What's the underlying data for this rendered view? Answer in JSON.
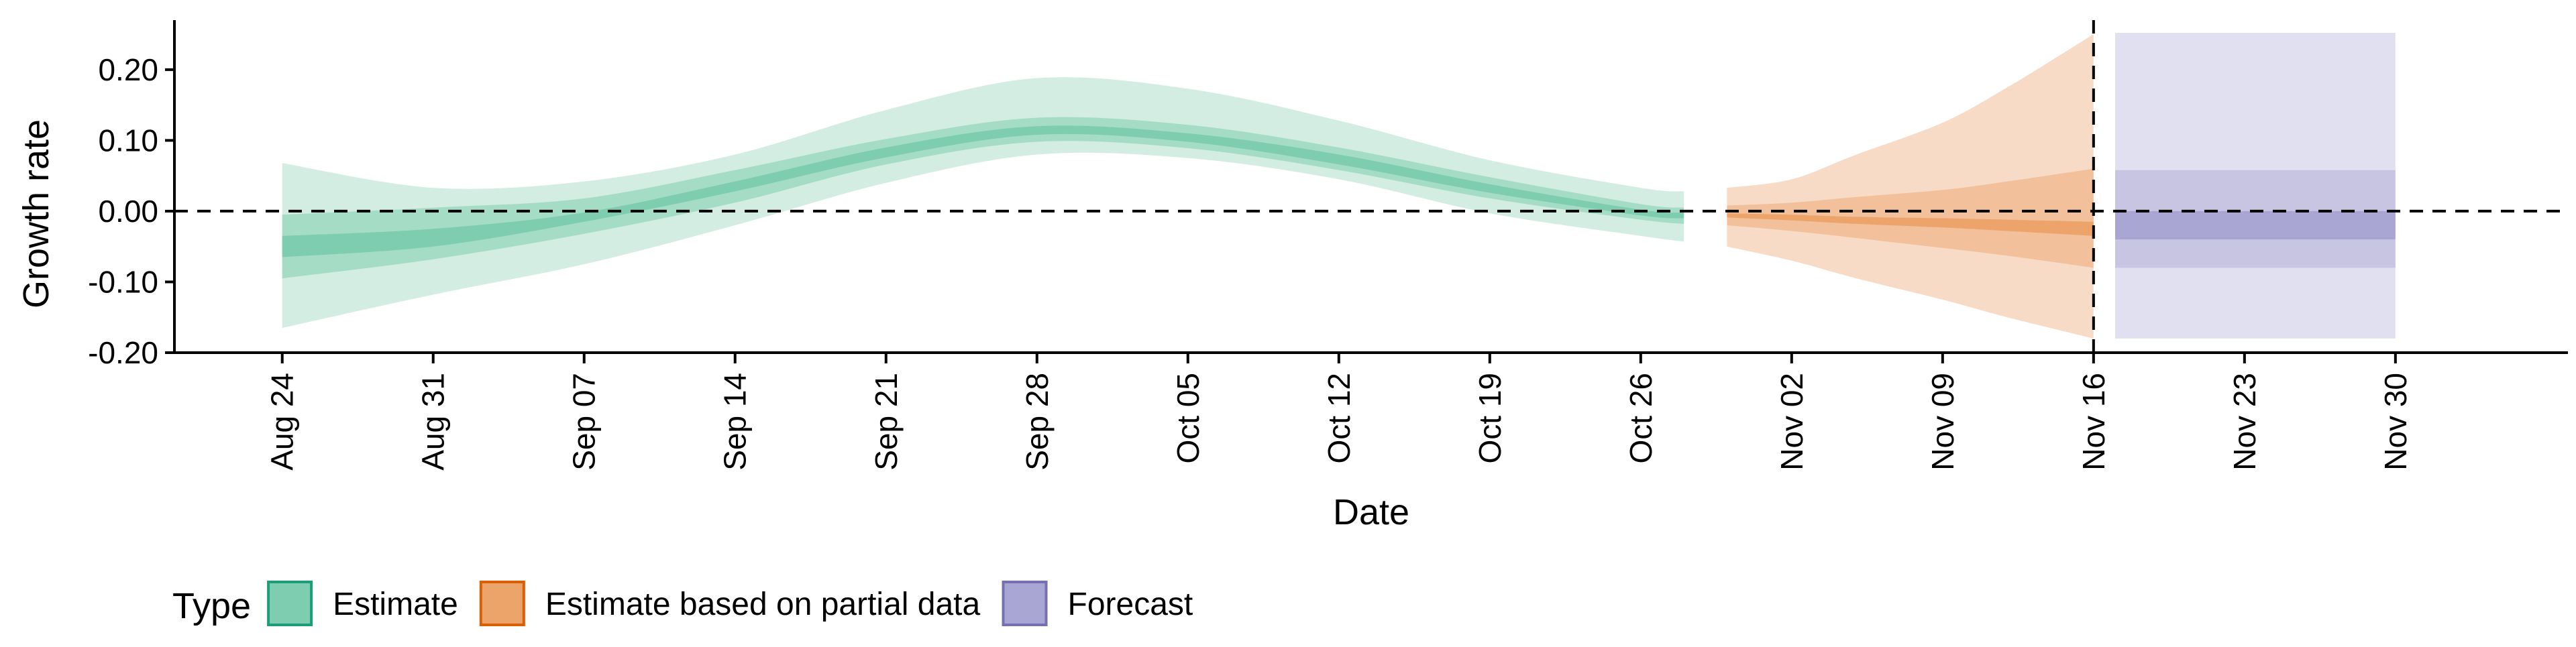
{
  "chart_data": {
    "type": "area",
    "title": "",
    "xlabel": "Date",
    "ylabel": "Growth rate",
    "ylim": [
      -0.2,
      0.27
    ],
    "yticks": [
      -0.2,
      -0.1,
      0.0,
      0.1,
      0.2
    ],
    "ytick_labels": [
      "-0.20",
      "-0.10",
      "0.00",
      "0.10",
      "0.20"
    ],
    "xlim": [
      "2020-08-19",
      "2020-12-08"
    ],
    "xticks": [
      "2020-08-24",
      "2020-08-31",
      "2020-09-07",
      "2020-09-14",
      "2020-09-21",
      "2020-09-28",
      "2020-10-05",
      "2020-10-12",
      "2020-10-19",
      "2020-10-26",
      "2020-11-02",
      "2020-11-09",
      "2020-11-16",
      "2020-11-23",
      "2020-11-30"
    ],
    "xtick_labels": [
      "Aug 24",
      "Aug 31",
      "Sep 07",
      "Sep 14",
      "Sep 21",
      "Sep 28",
      "Oct 05",
      "Oct 12",
      "Oct 19",
      "Oct 26",
      "Nov 02",
      "Nov 09",
      "Nov 16",
      "Nov 23",
      "Nov 30"
    ],
    "reference_lines": {
      "horizontal_y": 0.0,
      "vertical_x": "2020-11-16"
    },
    "grid": false,
    "legend": {
      "title": "Type",
      "position": "bottom-left",
      "entries": [
        {
          "label": "Estimate",
          "fill": "#7ecdb0",
          "stroke": "#1b9e77"
        },
        {
          "label": "Estimate based on partial data",
          "fill": "#eda46a",
          "stroke": "#d95f02"
        },
        {
          "label": "Forecast",
          "fill": "#aaa6d4",
          "stroke": "#7570b3"
        }
      ]
    },
    "series": [
      {
        "name": "Estimate",
        "colors": {
          "outer": "#d4ede3",
          "mid": "#a5dcc6",
          "inner": "#7ecdb0"
        },
        "x": [
          "2020-08-24",
          "2020-08-31",
          "2020-09-07",
          "2020-09-14",
          "2020-09-21",
          "2020-09-28",
          "2020-10-05",
          "2020-10-12",
          "2020-10-19",
          "2020-10-26",
          "2020-10-28"
        ],
        "outer_upper": [
          0.068,
          0.033,
          0.042,
          0.08,
          0.143,
          0.188,
          0.173,
          0.128,
          0.072,
          0.033,
          0.028
        ],
        "outer_lower": [
          -0.165,
          -0.118,
          -0.075,
          -0.02,
          0.04,
          0.08,
          0.075,
          0.045,
          -0.003,
          -0.035,
          -0.043
        ],
        "mid_upper": [
          -0.005,
          0.005,
          0.018,
          0.058,
          0.102,
          0.132,
          0.122,
          0.09,
          0.048,
          0.01,
          0.005
        ],
        "mid_lower": [
          -0.095,
          -0.068,
          -0.032,
          0.012,
          0.066,
          0.098,
          0.089,
          0.058,
          0.018,
          -0.012,
          -0.018
        ],
        "inner_upper": [
          -0.035,
          -0.025,
          -0.002,
          0.042,
          0.09,
          0.12,
          0.11,
          0.08,
          0.038,
          0.002,
          -0.002
        ],
        "inner_lower": [
          -0.065,
          -0.05,
          -0.015,
          0.028,
          0.076,
          0.108,
          0.098,
          0.066,
          0.026,
          -0.006,
          -0.01
        ]
      },
      {
        "name": "Estimate based on partial data",
        "colors": {
          "outer": "#f8dbc6",
          "mid": "#f2c09a",
          "inner": "#eda46a"
        },
        "x": [
          "2020-10-30",
          "2020-11-02",
          "2020-11-05",
          "2020-11-09",
          "2020-11-12",
          "2020-11-16"
        ],
        "outer_upper": [
          0.033,
          0.045,
          0.08,
          0.125,
          0.175,
          0.25
        ],
        "outer_lower": [
          -0.05,
          -0.07,
          -0.095,
          -0.125,
          -0.15,
          -0.18
        ],
        "mid_upper": [
          0.008,
          0.012,
          0.02,
          0.03,
          0.042,
          0.06
        ],
        "mid_lower": [
          -0.02,
          -0.028,
          -0.038,
          -0.052,
          -0.063,
          -0.08
        ],
        "inner_upper": [
          -0.003,
          -0.005,
          -0.008,
          -0.01,
          -0.012,
          -0.015
        ],
        "inner_lower": [
          -0.009,
          -0.013,
          -0.018,
          -0.023,
          -0.028,
          -0.035
        ]
      },
      {
        "name": "Forecast",
        "colors": {
          "outer": "#e1e0f0",
          "mid": "#c8c5e3",
          "inner": "#aaa6d4"
        },
        "x": [
          "2020-11-17",
          "2020-11-30"
        ],
        "outer_upper": [
          0.252,
          0.252
        ],
        "outer_lower": [
          -0.18,
          -0.18
        ],
        "mid_upper": [
          0.058,
          0.058
        ],
        "mid_lower": [
          -0.08,
          -0.08
        ],
        "inner_upper": [
          0.0,
          0.0
        ],
        "inner_lower": [
          -0.04,
          -0.04
        ]
      }
    ]
  }
}
